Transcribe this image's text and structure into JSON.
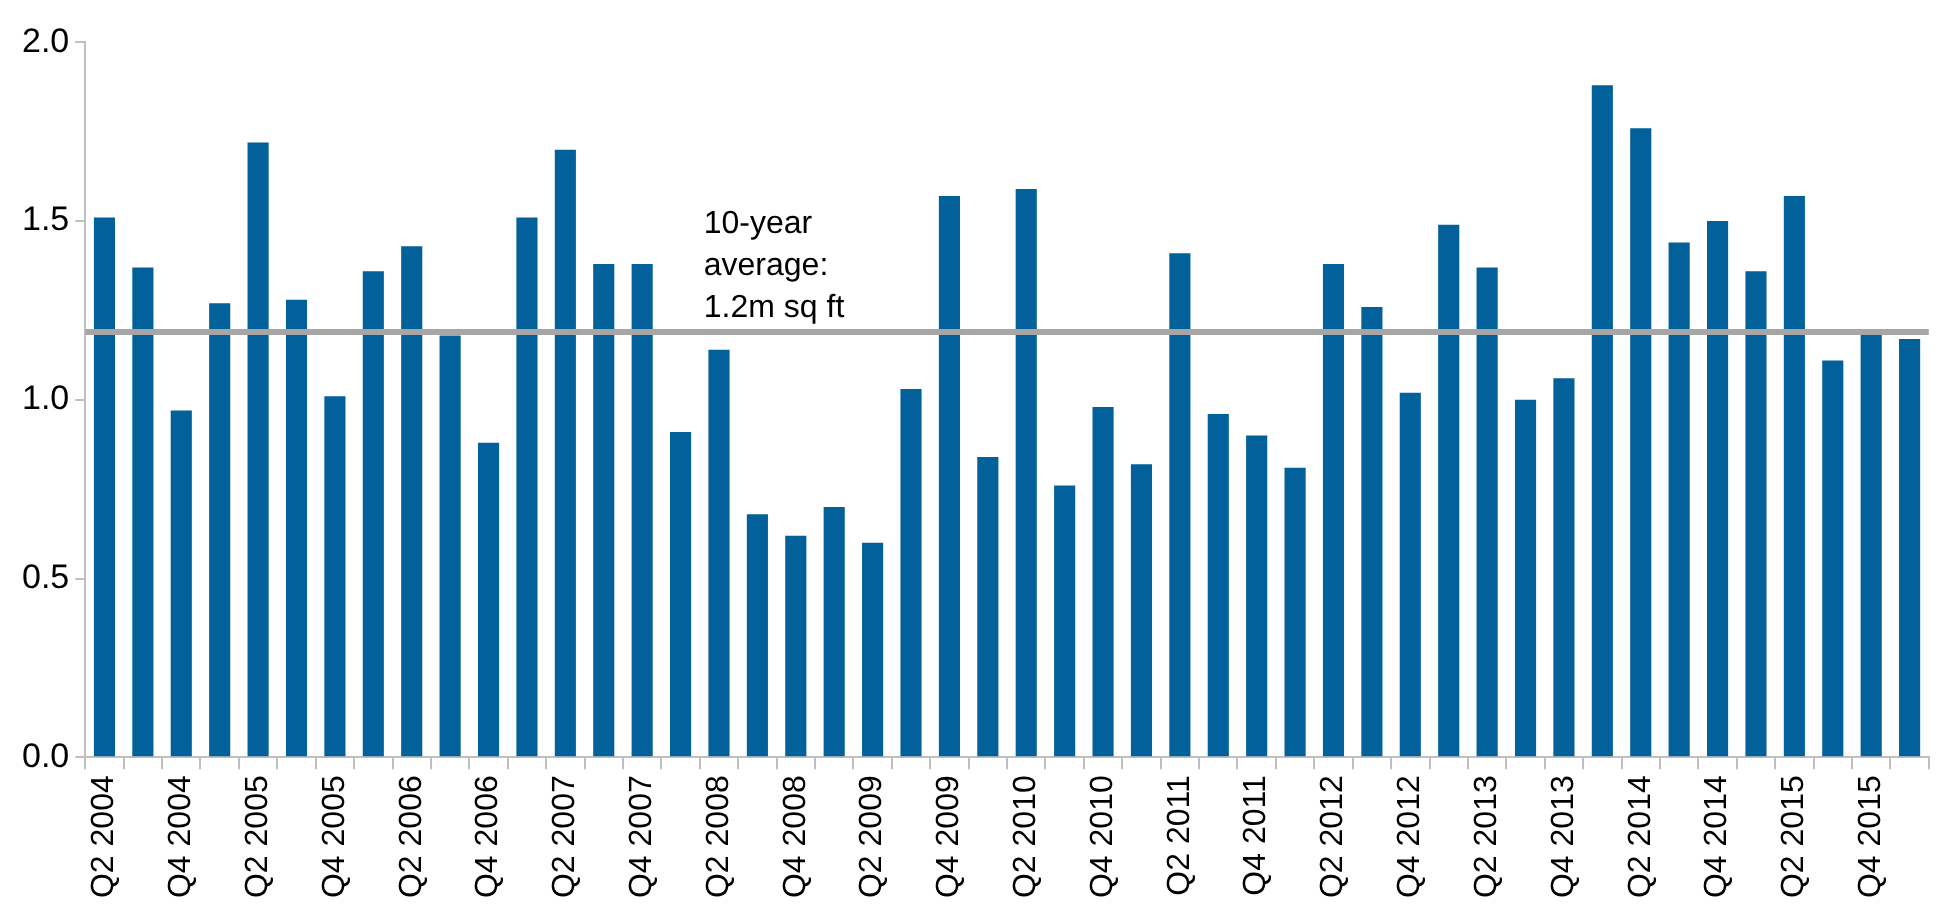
{
  "chart_data": {
    "type": "bar",
    "categories": [
      "Q2 2004",
      null,
      "Q4 2004",
      null,
      "Q2 2005",
      null,
      "Q4 2005",
      null,
      "Q2 2006",
      null,
      "Q4 2006",
      null,
      "Q2 2007",
      null,
      "Q4 2007",
      null,
      "Q2 2008",
      null,
      "Q4 2008",
      null,
      "Q2 2009",
      null,
      "Q4 2009",
      null,
      "Q2 2010",
      null,
      "Q4 2010",
      null,
      "Q2 2011",
      null,
      "Q4 2011",
      null,
      "Q2 2012",
      null,
      "Q4 2012",
      null,
      "Q2 2013",
      null,
      "Q4 2013",
      null,
      "Q2 2014",
      null,
      "Q4 2014",
      null,
      "Q2 2015",
      null,
      "Q4 2015",
      null
    ],
    "values": [
      1.51,
      1.37,
      0.97,
      1.27,
      1.72,
      1.28,
      1.01,
      1.36,
      1.43,
      1.18,
      0.88,
      1.51,
      1.7,
      1.38,
      1.38,
      0.91,
      1.14,
      0.68,
      0.62,
      0.7,
      0.6,
      1.03,
      1.57,
      0.84,
      1.59,
      0.76,
      0.98,
      0.82,
      1.41,
      0.96,
      0.9,
      0.81,
      1.38,
      1.26,
      1.02,
      1.49,
      1.37,
      1.0,
      1.06,
      1.88,
      1.76,
      1.44,
      1.5,
      1.36,
      1.57,
      1.11,
      1.19,
      1.17
    ],
    "color": "#02619a",
    "ylim": [
      0,
      2
    ],
    "yticks": [
      {
        "value": 0,
        "label": "0.0"
      },
      {
        "value": 0.5,
        "label": "0.5"
      },
      {
        "value": 1,
        "label": "1.0"
      },
      {
        "value": 1.5,
        "label": "1.5"
      },
      {
        "value": 2,
        "label": "2.0"
      }
    ],
    "ref_lines": [
      {
        "axis": "y",
        "value": 1.19,
        "label": "10-year average: 1.2m sq ft",
        "color": "#a6a6a6"
      }
    ],
    "grid": false,
    "legend": false
  }
}
